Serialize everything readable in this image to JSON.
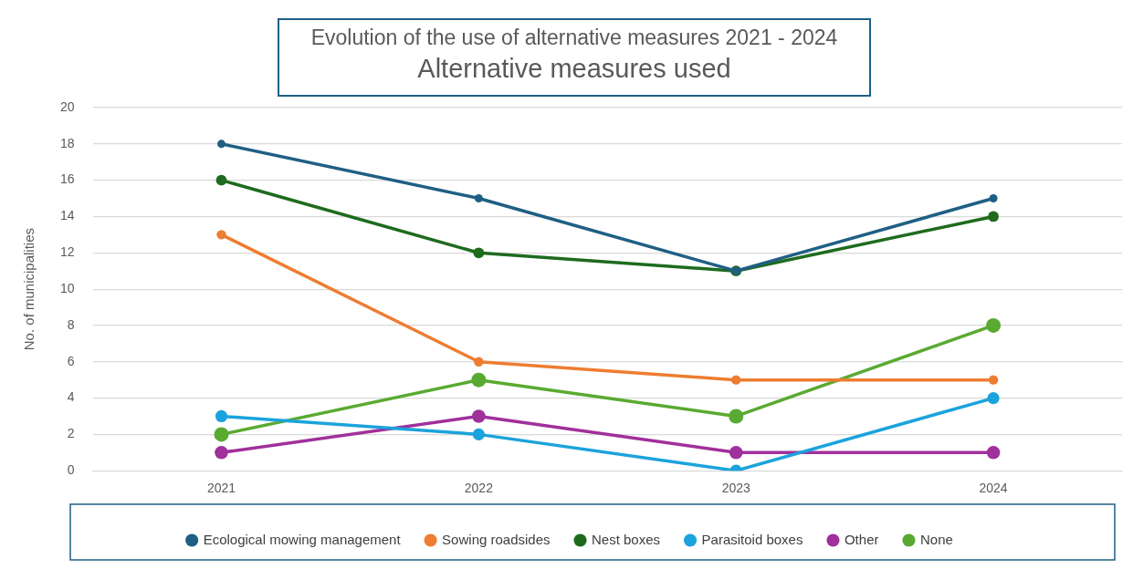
{
  "chart_data": {
    "type": "line",
    "title": "Evolution of the use of alternative measures 2021 - 2024",
    "subtitle": "Alternative measures used",
    "ylabel": "No. of municipalities",
    "categories": [
      "2021",
      "2022",
      "2023",
      "2024"
    ],
    "series": [
      {
        "name": "Ecological mowing management",
        "color": "#1f5f84",
        "values": [
          18,
          15,
          11,
          15
        ]
      },
      {
        "name": "Sowing roadsides",
        "color": "#ee7d31",
        "values": [
          13,
          6,
          5,
          5
        ]
      },
      {
        "name": "Nest boxes",
        "color": "#1e6b1e",
        "values": [
          16,
          12,
          11,
          14
        ]
      },
      {
        "name": "Parasitoid boxes",
        "color": "#1ba3dc",
        "values": [
          3,
          2,
          0,
          4
        ]
      },
      {
        "name": "Other",
        "color": "#a0309b",
        "values": [
          1,
          3,
          1,
          1
        ]
      },
      {
        "name": "None",
        "color": "#5aaa32",
        "values": [
          2,
          5,
          3,
          8
        ]
      }
    ],
    "ylim": [
      0,
      20
    ],
    "yticks": [
      0,
      2,
      4,
      6,
      8,
      10,
      12,
      14,
      16,
      18,
      20
    ],
    "grid": "y",
    "legend": "bottom",
    "marker": "circle",
    "line_style": "solid"
  }
}
